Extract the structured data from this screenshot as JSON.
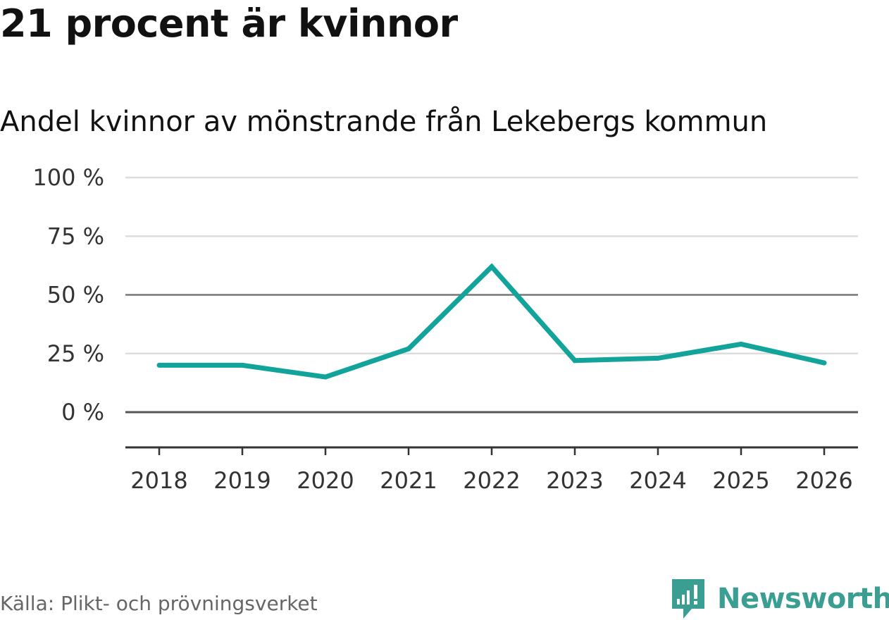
{
  "header": {
    "title": "21 procent är kvinnor",
    "subtitle": "Andel kvinnor av mönstrande från Lekebergs kommun"
  },
  "footer": {
    "source": "Källa: Plikt- och prövningsverket",
    "brand": "Newsworthy"
  },
  "colors": {
    "line": "#12a39a",
    "grid": "#dddddd",
    "axis": "#555555",
    "brand": "#3a9e92"
  },
  "icons": {
    "logo": "newsworthy-logo-icon"
  },
  "chart_data": {
    "type": "line",
    "title": "21 procent är kvinnor",
    "subtitle": "Andel kvinnor av mönstrande från Lekebergs kommun",
    "xlabel": "",
    "ylabel": "",
    "categories": [
      "2018",
      "2019",
      "2020",
      "2021",
      "2022",
      "2023",
      "2024",
      "2025",
      "2026"
    ],
    "series": [
      {
        "name": "Andel kvinnor",
        "values": [
          20,
          20,
          15,
          27,
          62,
          22,
          23,
          29,
          21
        ]
      }
    ],
    "yticks": [
      0,
      25,
      50,
      75,
      100
    ],
    "ytick_labels": [
      "0 %",
      "25 %",
      "50 %",
      "75 %",
      "100 %"
    ],
    "ylim": [
      -15,
      100
    ],
    "grid": true,
    "legend": "none"
  }
}
